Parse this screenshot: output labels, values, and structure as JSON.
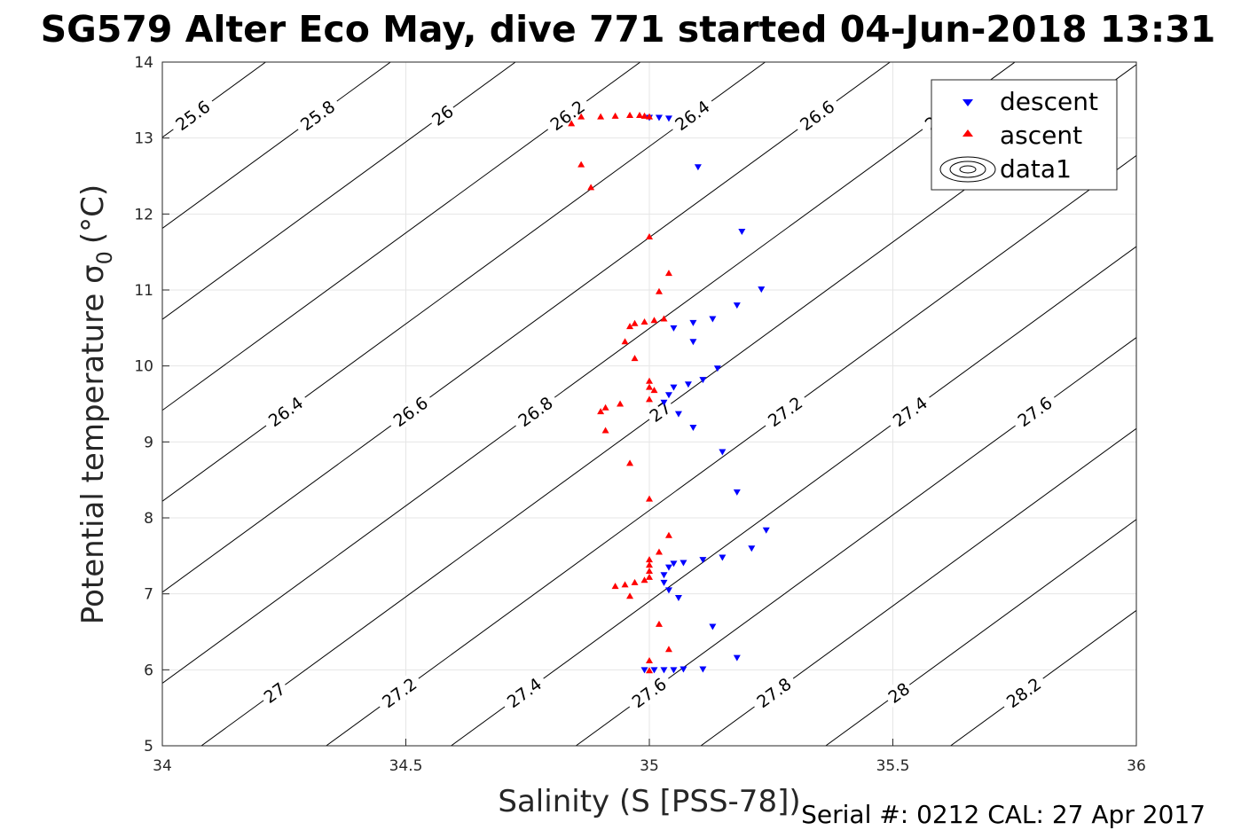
{
  "chart_data": {
    "type": "scatter",
    "title": "SG579 Alter Eco May, dive 771 started 04-Jun-2018 13:31",
    "xlabel": "Salinity (S [PSS-78])",
    "ylabel": "Potential temperature σ",
    "ylabel_sub": "0",
    "ylabel_unit": "(°C)",
    "xlim": [
      34,
      36
    ],
    "ylim": [
      5,
      14
    ],
    "xticks": [
      "34",
      "34.5",
      "35",
      "35.5",
      "36"
    ],
    "yticks": [
      "5",
      "6",
      "7",
      "8",
      "9",
      "10",
      "11",
      "12",
      "13",
      "14"
    ],
    "grid": true,
    "legend_position": "top-right",
    "legend": [
      "descent",
      "ascent",
      "data1"
    ],
    "footer": "Serial #: 0212  CAL: 27 Apr 2017",
    "colors": {
      "descent": "#0000ff",
      "ascent": "#ff0000",
      "contour": "#000000"
    },
    "contour_levels": [
      "25.6",
      "25.8",
      "26",
      "26.2",
      "26.4",
      "26.6",
      "26.8",
      "27",
      "27.2",
      "27.4",
      "27.6",
      "27.8",
      "28",
      "28.2"
    ],
    "series": [
      {
        "name": "descent",
        "marker": "triangle-down",
        "points": [
          [
            35.0,
            13.27
          ],
          [
            35.02,
            13.27
          ],
          [
            35.04,
            13.26
          ],
          [
            35.1,
            12.62
          ],
          [
            35.19,
            11.77
          ],
          [
            35.23,
            11.01
          ],
          [
            35.18,
            10.8
          ],
          [
            35.13,
            10.62
          ],
          [
            35.09,
            10.57
          ],
          [
            35.05,
            10.5
          ],
          [
            35.09,
            10.32
          ],
          [
            35.14,
            9.97
          ],
          [
            35.11,
            9.82
          ],
          [
            35.08,
            9.76
          ],
          [
            35.05,
            9.72
          ],
          [
            35.04,
            9.62
          ],
          [
            35.03,
            9.52
          ],
          [
            35.06,
            9.37
          ],
          [
            35.09,
            9.19
          ],
          [
            35.15,
            8.87
          ],
          [
            35.18,
            8.34
          ],
          [
            35.24,
            7.84
          ],
          [
            35.21,
            7.6
          ],
          [
            35.15,
            7.48
          ],
          [
            35.11,
            7.45
          ],
          [
            35.07,
            7.41
          ],
          [
            35.05,
            7.4
          ],
          [
            35.04,
            7.35
          ],
          [
            35.03,
            7.25
          ],
          [
            35.03,
            7.15
          ],
          [
            35.04,
            7.05
          ],
          [
            35.06,
            6.95
          ],
          [
            35.13,
            6.57
          ],
          [
            35.18,
            6.16
          ],
          [
            35.11,
            6.01
          ],
          [
            35.07,
            6.01
          ],
          [
            35.05,
            6.0
          ],
          [
            35.03,
            6.0
          ],
          [
            35.01,
            6.0
          ],
          [
            34.99,
            6.0
          ]
        ]
      },
      {
        "name": "ascent",
        "marker": "triangle-up",
        "points": [
          [
            34.86,
            13.28
          ],
          [
            34.9,
            13.28
          ],
          [
            34.93,
            13.29
          ],
          [
            34.96,
            13.3
          ],
          [
            34.98,
            13.3
          ],
          [
            34.99,
            13.29
          ],
          [
            35.0,
            13.28
          ],
          [
            34.84,
            13.19
          ],
          [
            34.86,
            12.65
          ],
          [
            34.88,
            12.35
          ],
          [
            35.0,
            11.7
          ],
          [
            35.04,
            11.22
          ],
          [
            35.02,
            10.98
          ],
          [
            35.03,
            10.62
          ],
          [
            35.01,
            10.6
          ],
          [
            34.99,
            10.58
          ],
          [
            34.97,
            10.56
          ],
          [
            34.96,
            10.52
          ],
          [
            34.95,
            10.32
          ],
          [
            34.97,
            10.1
          ],
          [
            35.0,
            9.8
          ],
          [
            35.0,
            9.72
          ],
          [
            35.01,
            9.68
          ],
          [
            35.0,
            9.56
          ],
          [
            34.94,
            9.5
          ],
          [
            34.91,
            9.45
          ],
          [
            34.9,
            9.4
          ],
          [
            34.91,
            9.15
          ],
          [
            34.96,
            8.72
          ],
          [
            35.0,
            8.25
          ],
          [
            35.04,
            7.77
          ],
          [
            35.02,
            7.55
          ],
          [
            35.0,
            7.45
          ],
          [
            35.0,
            7.38
          ],
          [
            35.0,
            7.3
          ],
          [
            35.0,
            7.22
          ],
          [
            34.99,
            7.18
          ],
          [
            34.97,
            7.15
          ],
          [
            34.95,
            7.12
          ],
          [
            34.93,
            7.1
          ],
          [
            34.96,
            6.97
          ],
          [
            35.02,
            6.6
          ],
          [
            35.04,
            6.27
          ],
          [
            35.0,
            6.12
          ],
          [
            35.0,
            5.99
          ]
        ]
      }
    ]
  }
}
